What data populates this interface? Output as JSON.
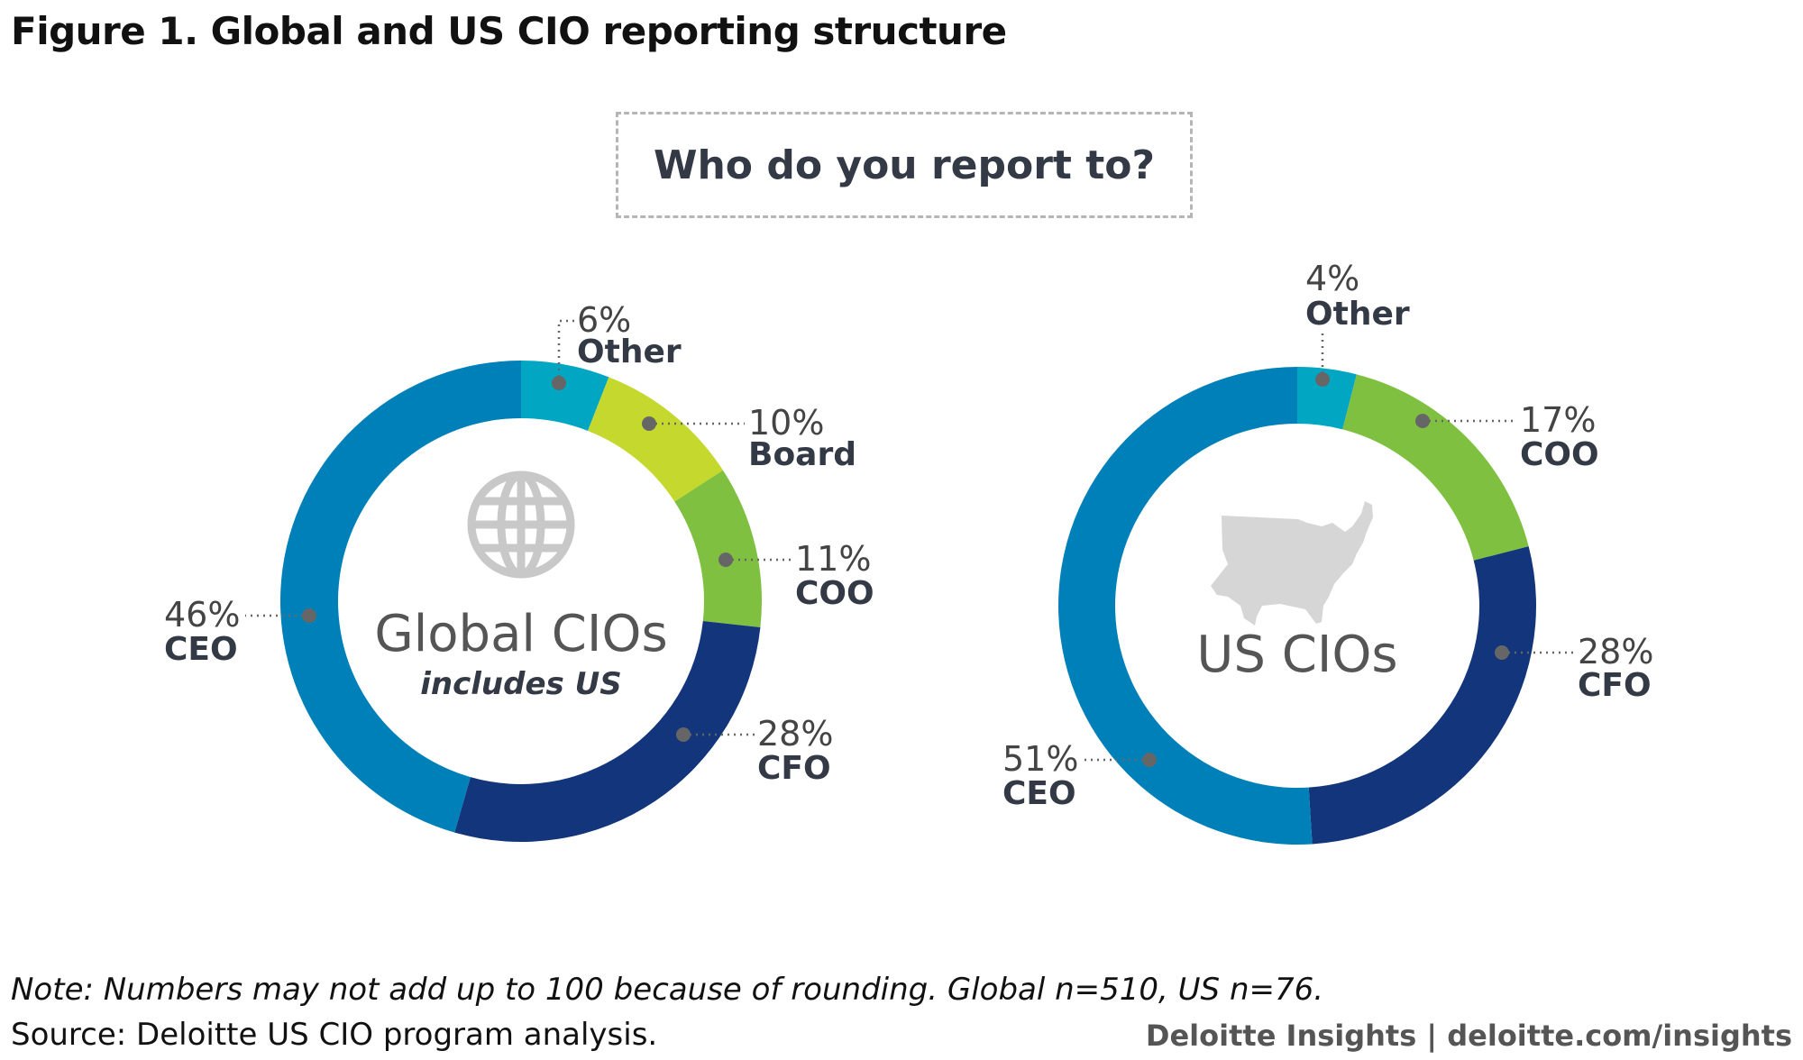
{
  "title": "Figure 1. Global and US CIO reporting structure",
  "question": "Who do you report to?",
  "note": "Note: Numbers may not add up to 100 because of rounding. Global n=510, US n=76.",
  "source": "Source: Deloitte US CIO program analysis.",
  "credit": "Deloitte Insights | deloitte.com/insights",
  "colors": {
    "CEO": "#0080b9",
    "CFO": "#13357b",
    "COO": "#80c041",
    "Board": "#c4d82e",
    "Other": "#00a6c2"
  },
  "chart_data": [
    {
      "type": "pie",
      "center_title": "Global CIOs",
      "center_subtitle": "includes US",
      "icon": "globe-icon",
      "slices": [
        {
          "label": "Other",
          "value": 6,
          "pct_text": "6%"
        },
        {
          "label": "Board",
          "value": 10,
          "pct_text": "10%"
        },
        {
          "label": "COO",
          "value": 11,
          "pct_text": "11%"
        },
        {
          "label": "CFO",
          "value": 28,
          "pct_text": "28%"
        },
        {
          "label": "CEO",
          "value": 46,
          "pct_text": "46%"
        }
      ]
    },
    {
      "type": "pie",
      "center_title": "US CIOs",
      "center_subtitle": "",
      "icon": "us-map-icon",
      "slices": [
        {
          "label": "Other",
          "value": 4,
          "pct_text": "4%"
        },
        {
          "label": "COO",
          "value": 17,
          "pct_text": "17%"
        },
        {
          "label": "CFO",
          "value": 28,
          "pct_text": "28%"
        },
        {
          "label": "CEO",
          "value": 51,
          "pct_text": "51%"
        }
      ]
    }
  ]
}
